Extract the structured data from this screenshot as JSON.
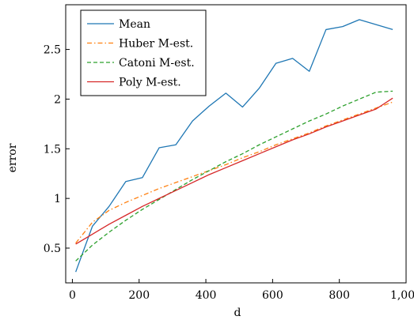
{
  "chart_data": {
    "type": "line",
    "xlabel": "d",
    "ylabel": "error",
    "xlim": [
      -20,
      1000
    ],
    "ylim": [
      0.15,
      2.95
    ],
    "xticks": [
      0,
      200,
      400,
      600,
      800,
      1000
    ],
    "xtick_labels": [
      "0",
      "200",
      "400",
      "600",
      "800",
      "1,000"
    ],
    "yticks": [
      0.5,
      1,
      1.5,
      2,
      2.5
    ],
    "ytick_labels": [
      "0.5",
      "1",
      "1.5",
      "2",
      "2.5"
    ],
    "grid": false,
    "legend_position": "top-left",
    "x": [
      10,
      60,
      110,
      160,
      210,
      260,
      310,
      360,
      410,
      460,
      510,
      560,
      610,
      660,
      710,
      760,
      810,
      860,
      910,
      960
    ],
    "series": [
      {
        "name": "Mean",
        "color": "#1f77b4",
        "dash": "solid",
        "values": [
          0.26,
          0.72,
          0.92,
          1.17,
          1.21,
          1.51,
          1.54,
          1.78,
          1.93,
          2.06,
          1.92,
          2.11,
          2.36,
          2.41,
          2.28,
          2.7,
          2.73,
          2.8,
          2.75,
          2.7
        ]
      },
      {
        "name": "Huber M-est.",
        "color": "#ff7f0e",
        "dash": "dashdot",
        "values": [
          0.55,
          0.76,
          0.88,
          0.96,
          1.03,
          1.1,
          1.16,
          1.22,
          1.28,
          1.34,
          1.41,
          1.47,
          1.54,
          1.6,
          1.66,
          1.73,
          1.79,
          1.85,
          1.91,
          1.97
        ]
      },
      {
        "name": "Catoni M-est.",
        "color": "#2ca02c",
        "dash": "dashed",
        "values": [
          0.37,
          0.53,
          0.66,
          0.78,
          0.89,
          0.99,
          1.09,
          1.19,
          1.28,
          1.37,
          1.45,
          1.54,
          1.62,
          1.7,
          1.78,
          1.85,
          1.93,
          2.0,
          2.07,
          2.08
        ]
      },
      {
        "name": "Poly M-est.",
        "color": "#d62728",
        "dash": "solid",
        "values": [
          0.54,
          0.64,
          0.74,
          0.83,
          0.92,
          1.0,
          1.08,
          1.16,
          1.24,
          1.31,
          1.38,
          1.45,
          1.52,
          1.59,
          1.65,
          1.72,
          1.78,
          1.84,
          1.9,
          2.01
        ]
      }
    ]
  }
}
